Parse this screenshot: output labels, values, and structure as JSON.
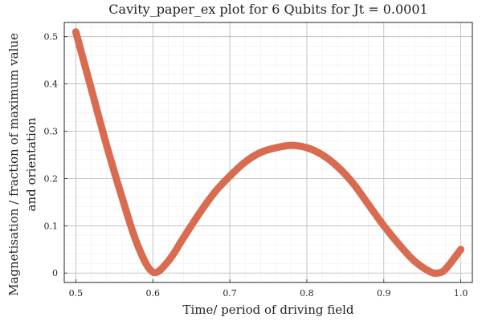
{
  "chart_data": {
    "type": "line",
    "title": "Cavity_paper_ex plot for 6 Qubits for Jt = 0.0001",
    "xlabel": "Time/ period of driving field",
    "ylabel": [
      "Magnetisation / fraction of maximum value",
      "and orientation"
    ],
    "xlim": [
      0.485,
      1.015
    ],
    "ylim": [
      -0.02,
      0.53
    ],
    "xticks": [
      "0.5",
      "0.6",
      "0.7",
      "0.8",
      "0.9",
      "1.0"
    ],
    "yticks": [
      "0",
      "0.1",
      "0.2",
      "0.3",
      "0.4",
      "0.5"
    ],
    "grid": true,
    "legend": "none",
    "series_color": "#D86B50",
    "series": [
      {
        "x": [
          0.5,
          0.52,
          0.54,
          0.56,
          0.58,
          0.6,
          0.62,
          0.64,
          0.66,
          0.68,
          0.7,
          0.72,
          0.74,
          0.76,
          0.78,
          0.8,
          0.82,
          0.84,
          0.86,
          0.88,
          0.9,
          0.92,
          0.94,
          0.96,
          0.97,
          0.98,
          1.0
        ],
        "y": [
          0.51,
          0.39,
          0.27,
          0.16,
          0.06,
          0.002,
          0.025,
          0.075,
          0.125,
          0.17,
          0.205,
          0.235,
          0.255,
          0.265,
          0.27,
          0.265,
          0.25,
          0.225,
          0.19,
          0.145,
          0.1,
          0.06,
          0.025,
          0.003,
          0.0,
          0.008,
          0.05
        ]
      }
    ]
  }
}
